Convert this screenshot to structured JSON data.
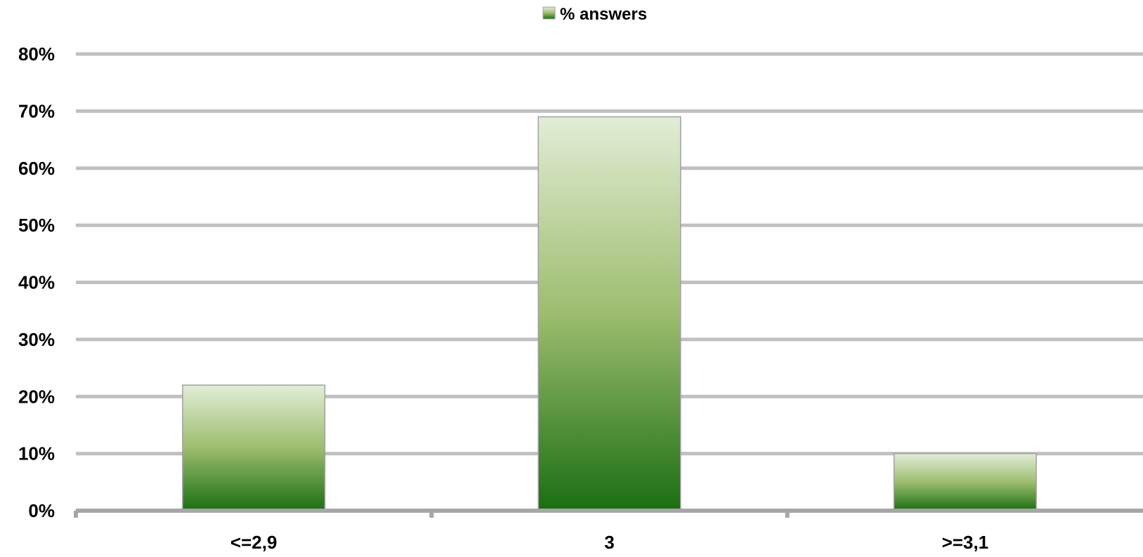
{
  "chart_data": {
    "type": "bar",
    "title": "",
    "xlabel": "",
    "ylabel": "",
    "categories": [
      "<=2,9",
      "3",
      ">=3,1"
    ],
    "series": [
      {
        "name": "% answers",
        "values": [
          0.22,
          0.69,
          0.1
        ]
      }
    ],
    "ylim": [
      0,
      0.8
    ],
    "yticks": [
      0,
      0.1,
      0.2,
      0.3,
      0.4,
      0.5,
      0.6,
      0.7,
      0.8
    ],
    "ytick_labels": [
      "0%",
      "10%",
      "20%",
      "30%",
      "40%",
      "50%",
      "60%",
      "70%",
      "80%"
    ],
    "grid": true,
    "legend_position": "top-center",
    "colors": {
      "bar_top": "#e2edd6",
      "bar_mid": "#9dbd6e",
      "bar_bottom": "#1a6e12",
      "bar_border": "#a0a0a0",
      "gridline": "#c0c0c0",
      "axis": "#a6a6a6"
    }
  }
}
